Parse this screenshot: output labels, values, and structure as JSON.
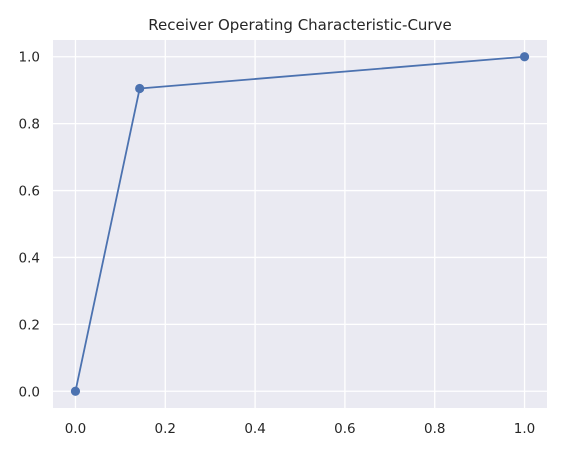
{
  "chart_data": {
    "type": "line",
    "title": "Receiver Operating Characteristic-Curve",
    "xlabel": "",
    "ylabel": "",
    "xlim": [
      -0.05,
      1.05
    ],
    "ylim": [
      -0.05,
      1.05
    ],
    "xticks": [
      0.0,
      0.2,
      0.4,
      0.6,
      0.8,
      1.0
    ],
    "xtick_labels": [
      "0.0",
      "0.2",
      "0.4",
      "0.6",
      "0.8",
      "1.0"
    ],
    "yticks": [
      0.0,
      0.2,
      0.4,
      0.6,
      0.8,
      1.0
    ],
    "ytick_labels": [
      "0.0",
      "0.2",
      "0.4",
      "0.6",
      "0.8",
      "1.0"
    ],
    "grid": true,
    "series": [
      {
        "x": [
          0.0,
          0.143,
          1.0
        ],
        "y": [
          0.0,
          0.905,
          1.0
        ],
        "marker": "circle",
        "color": "#4c72b0"
      }
    ]
  },
  "style": {
    "background": "#eaeaf2",
    "grid_color": "#ffffff"
  }
}
